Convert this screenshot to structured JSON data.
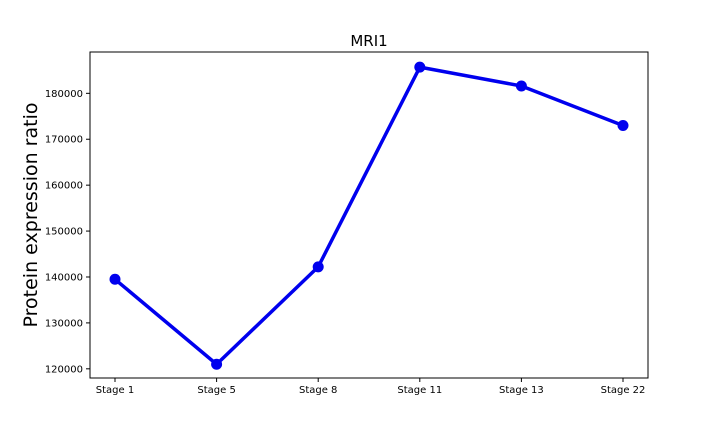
{
  "chart_data": {
    "type": "line",
    "title": "MRI1",
    "xlabel": "",
    "ylabel": "Protein expression ratio",
    "categories": [
      "Stage 1",
      "Stage 5",
      "Stage 8",
      "Stage 11",
      "Stage 13",
      "Stage 22"
    ],
    "values": [
      139500,
      121000,
      142200,
      185700,
      181600,
      173000
    ],
    "yticks": [
      120000,
      130000,
      140000,
      150000,
      160000,
      170000,
      180000
    ],
    "ylim": [
      118000,
      189000
    ],
    "grid": false,
    "legend": "none",
    "line_color": "#0000ee"
  }
}
